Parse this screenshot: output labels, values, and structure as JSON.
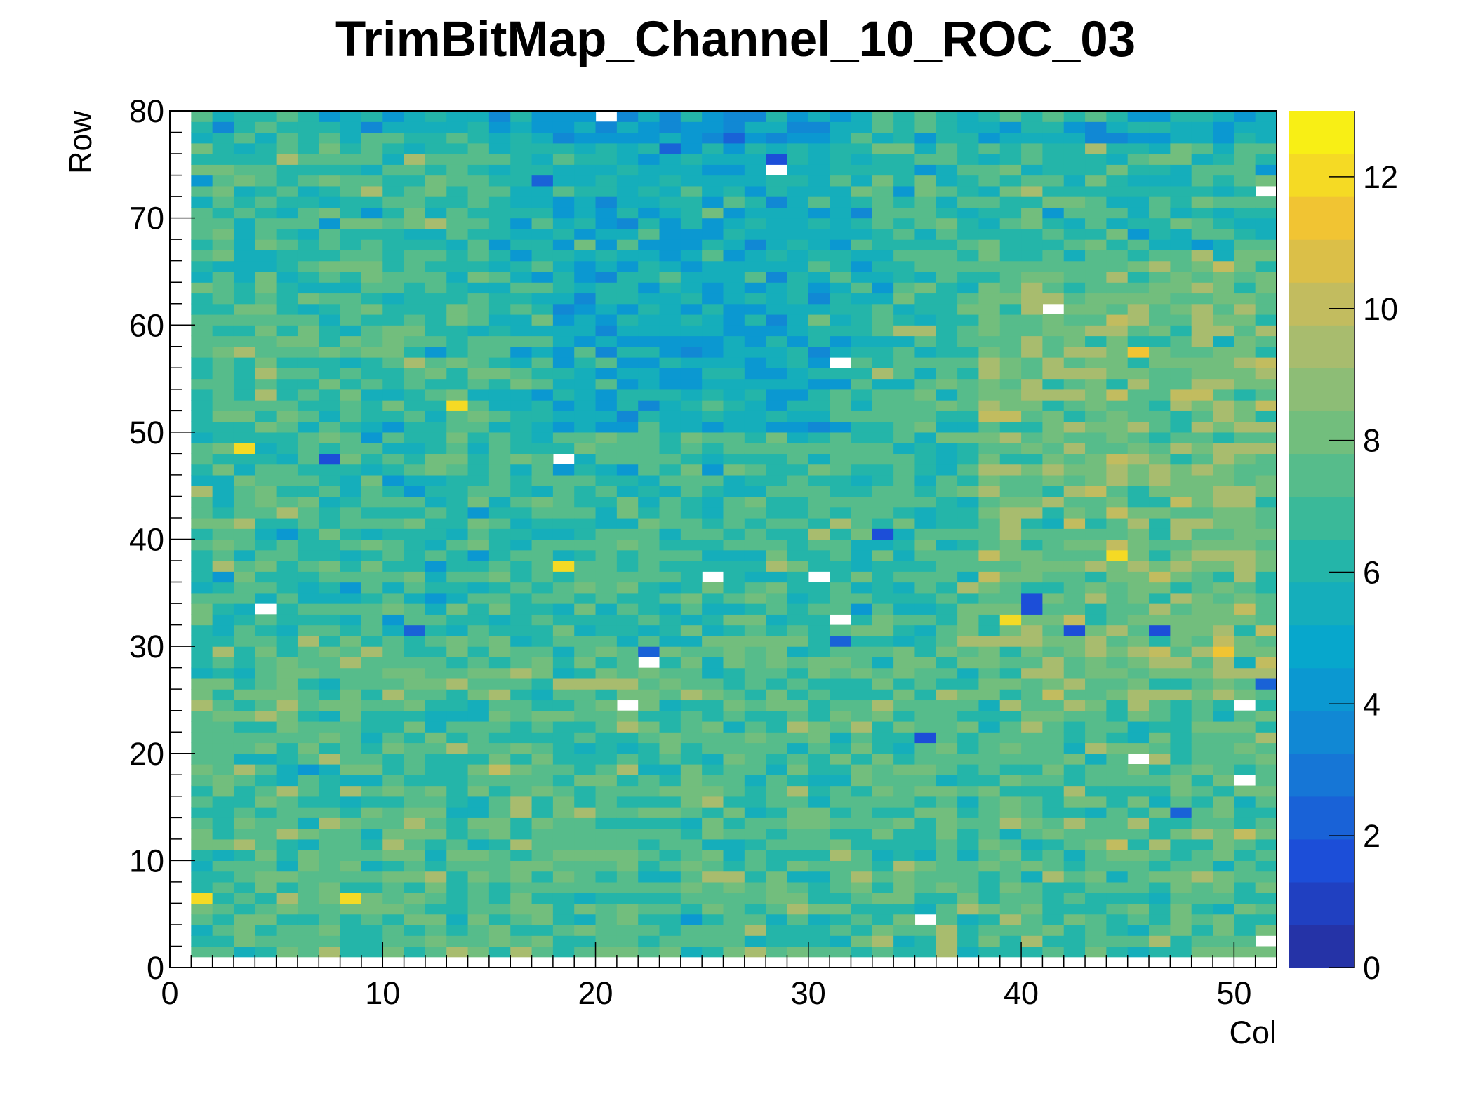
{
  "chart_data": {
    "type": "heatmap",
    "title": "TrimBitMap_Channel_10_ROC_03",
    "xlabel": "Col",
    "ylabel": "Row",
    "xlim": [
      0,
      52
    ],
    "ylim": [
      0,
      80
    ],
    "zlim": [
      0,
      13
    ],
    "x_ticks": [
      0,
      10,
      20,
      30,
      40,
      50
    ],
    "y_ticks": [
      0,
      10,
      20,
      30,
      40,
      50,
      60,
      70,
      80
    ],
    "z_ticks": [
      0,
      2,
      4,
      6,
      8,
      10,
      12
    ],
    "occupied_cols": [
      1,
      51
    ],
    "occupied_rows": [
      1,
      79
    ],
    "typical_value": 6.5,
    "empty_cells": [
      [
        20,
        79
      ],
      [
        28,
        74
      ],
      [
        51,
        72
      ],
      [
        41,
        61
      ],
      [
        31,
        56
      ],
      [
        18,
        47
      ],
      [
        4,
        33
      ],
      [
        25,
        36
      ],
      [
        30,
        36
      ],
      [
        31,
        32
      ],
      [
        22,
        28
      ],
      [
        21,
        24
      ],
      [
        50,
        24
      ],
      [
        45,
        19
      ],
      [
        50,
        17
      ],
      [
        35,
        4
      ],
      [
        51,
        2
      ]
    ],
    "high_cells": [
      [
        13,
        52,
        12
      ],
      [
        3,
        48,
        12
      ],
      [
        18,
        37,
        12
      ],
      [
        44,
        38,
        12
      ],
      [
        39,
        32,
        12
      ],
      [
        45,
        57,
        11
      ],
      [
        49,
        29,
        11
      ],
      [
        1,
        6,
        12
      ],
      [
        8,
        6,
        12
      ]
    ],
    "low_cells": [
      [
        40,
        34,
        1
      ],
      [
        40,
        33,
        1
      ],
      [
        28,
        75,
        1
      ],
      [
        7,
        47,
        1
      ],
      [
        33,
        40,
        1
      ],
      [
        42,
        31,
        1
      ],
      [
        46,
        31,
        1
      ],
      [
        35,
        21,
        1
      ],
      [
        22,
        29,
        2
      ],
      [
        31,
        30,
        2
      ],
      [
        11,
        31,
        2
      ],
      [
        47,
        14,
        2
      ],
      [
        51,
        26,
        2
      ]
    ],
    "regional_trends": [
      {
        "region": "upper-center (cols 15-32, rows 50-79)",
        "mean": 5.0
      },
      {
        "region": "upper-right (cols 38-51, rows 25-65)",
        "mean": 7.8
      },
      {
        "region": "lower half (rows 1-30)",
        "mean": 6.9
      }
    ]
  }
}
